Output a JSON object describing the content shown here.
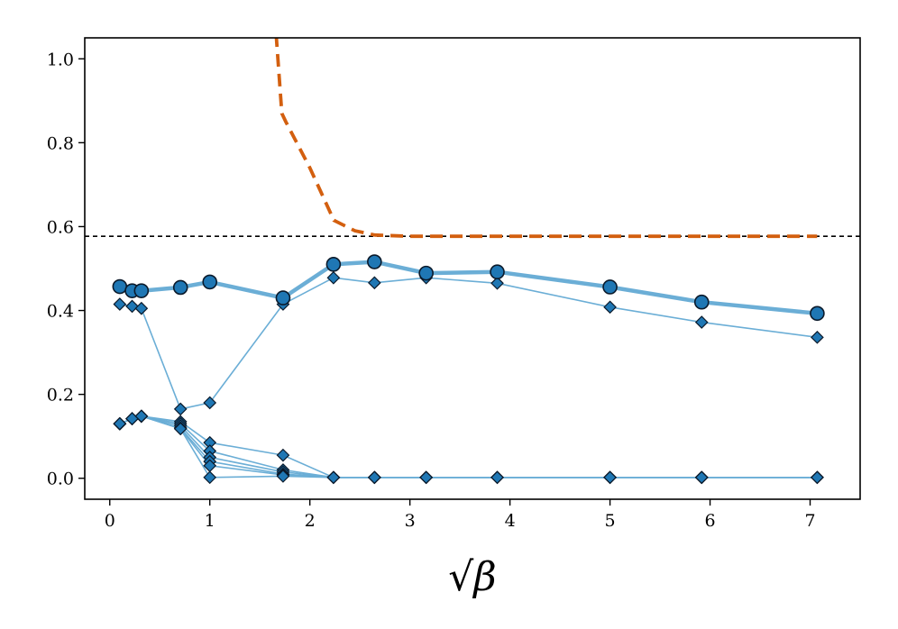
{
  "chart_data": {
    "type": "line",
    "xlabel": "√β",
    "xlim": [
      -0.25,
      7.5
    ],
    "ylim": [
      -0.05,
      1.05
    ],
    "xticks": [
      0,
      1,
      2,
      3,
      4,
      5,
      6,
      7
    ],
    "yticks": [
      0.0,
      0.2,
      0.4,
      0.6,
      0.8,
      1.0
    ],
    "xtick_labels": [
      "0",
      "1",
      "2",
      "3",
      "4",
      "5",
      "6",
      "7"
    ],
    "ytick_labels": [
      "0.0",
      "0.2",
      "0.4",
      "0.6",
      "0.8",
      "1.0"
    ],
    "reference_line": {
      "y": 0.577,
      "style": "dashed",
      "color": "#000000"
    },
    "colors": {
      "main": "#6baed6",
      "marker_fill": "#1f77b4",
      "marker_edge": "#0b1a2b",
      "dashed": "#d35f0f"
    },
    "x": [
      0.1,
      0.2236,
      0.3162,
      0.7071,
      1.0,
      1.7321,
      2.2361,
      2.6458,
      3.1623,
      3.873,
      5.0,
      5.9161,
      7.0711
    ],
    "circle_series": {
      "values": [
        0.457,
        0.447,
        0.447,
        0.455,
        0.468,
        0.43,
        0.51,
        0.516,
        0.489,
        0.492,
        0.456,
        0.42,
        0.393
      ]
    },
    "diamond_series": [
      {
        "values": [
          0.415,
          0.41,
          0.405,
          0.165,
          0.18,
          0.415,
          0.478,
          0.466,
          0.478,
          0.465,
          0.408,
          0.372,
          0.336
        ]
      },
      {
        "values": [
          0.13,
          0.142,
          0.148,
          0.135,
          0.085,
          0.055,
          0.002,
          0.002,
          0.002,
          0.002,
          0.002,
          0.002,
          0.002
        ]
      },
      {
        "values": [
          0.13,
          0.142,
          0.148,
          0.13,
          0.065,
          0.02,
          0.002,
          0.002,
          0.002,
          0.002,
          0.002,
          0.002,
          0.002
        ]
      },
      {
        "values": [
          0.13,
          0.142,
          0.148,
          0.125,
          0.05,
          0.015,
          0.002,
          0.002,
          0.002,
          0.002,
          0.002,
          0.002,
          0.002
        ]
      },
      {
        "values": [
          0.13,
          0.142,
          0.148,
          0.12,
          0.04,
          0.01,
          0.002,
          0.002,
          0.002,
          0.002,
          0.002,
          0.002,
          0.002
        ]
      },
      {
        "values": [
          0.13,
          0.142,
          0.148,
          0.118,
          0.03,
          0.008,
          0.002,
          0.002,
          0.002,
          0.002,
          0.002,
          0.002,
          0.002
        ]
      },
      {
        "values": [
          0.13,
          0.142,
          0.148,
          0.118,
          0.002,
          0.005,
          0.002,
          0.002,
          0.002,
          0.002,
          0.002,
          0.002,
          0.002
        ]
      }
    ],
    "dashed_curve": {
      "x": [
        1.62,
        1.72,
        1.76,
        2.0,
        2.24,
        2.45,
        2.65,
        3.0,
        3.5,
        4.0,
        5.0,
        6.0,
        7.07
      ],
      "values": [
        1.2,
        0.87,
        0.85,
        0.74,
        0.615,
        0.59,
        0.58,
        0.577,
        0.577,
        0.577,
        0.577,
        0.577,
        0.577
      ]
    }
  }
}
